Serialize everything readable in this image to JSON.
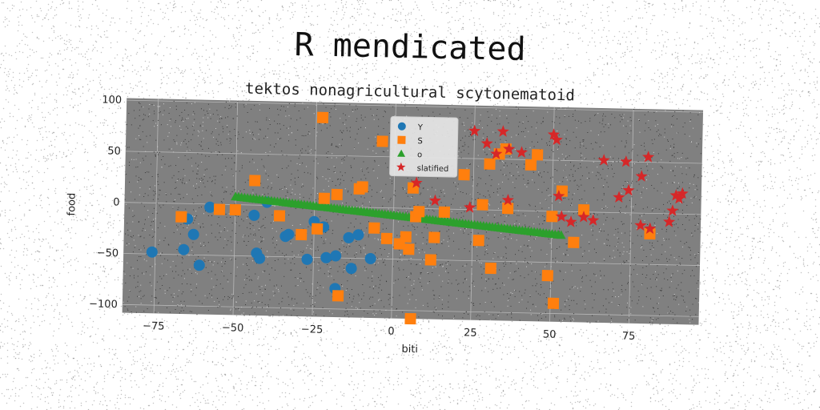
{
  "chart_data": {
    "type": "scatter",
    "title": "R mendicated",
    "subtitle": "tektos nonagricultural scytonematoid",
    "xlabel": "biti",
    "ylabel": "food",
    "xlim": [
      -85,
      97
    ],
    "ylim": [
      -108,
      102
    ],
    "xticks": [
      -75,
      -50,
      -25,
      0,
      25,
      50,
      75
    ],
    "yticks": [
      -100,
      -50,
      0,
      50,
      100
    ],
    "grid": true,
    "legend_position": "top-center",
    "background": "#808080",
    "series": [
      {
        "name": "Y",
        "marker": "circle",
        "color": "#1f77b4",
        "points": [
          [
            -76,
            -48
          ],
          [
            -66,
            -45
          ],
          [
            -63,
            -30
          ],
          [
            -61,
            -60
          ],
          [
            -65,
            -15
          ],
          [
            -58,
            -3
          ],
          [
            -44,
            -10
          ],
          [
            -43,
            -47
          ],
          [
            -42,
            -52
          ],
          [
            -40,
            3
          ],
          [
            -34,
            -30
          ],
          [
            -33,
            -28
          ],
          [
            -27,
            -52
          ],
          [
            -25,
            -15
          ],
          [
            -22,
            -20
          ],
          [
            -21,
            -50
          ],
          [
            -18,
            -48
          ],
          [
            -18,
            -80
          ],
          [
            -14,
            -30
          ],
          [
            -13,
            -60
          ],
          [
            -11,
            -27
          ],
          [
            -7,
            -50
          ]
        ]
      },
      {
        "name": "S",
        "marker": "square",
        "color": "#ff7f0e",
        "points": [
          [
            -67,
            -13
          ],
          [
            -55,
            -5
          ],
          [
            -50,
            -5
          ],
          [
            -44,
            24
          ],
          [
            -36,
            -10
          ],
          [
            -29,
            -28
          ],
          [
            -24,
            -22
          ],
          [
            -23,
            87
          ],
          [
            -22,
            8
          ],
          [
            -18,
            12
          ],
          [
            -17,
            -87
          ],
          [
            -11,
            18
          ],
          [
            -10,
            20
          ],
          [
            -6,
            -20
          ],
          [
            -4,
            65
          ],
          [
            -2,
            -30
          ],
          [
            2,
            -35
          ],
          [
            4,
            -28
          ],
          [
            5,
            -40
          ],
          [
            6,
            20
          ],
          [
            6,
            -108
          ],
          [
            7,
            -8
          ],
          [
            8,
            -3
          ],
          [
            12,
            -50
          ],
          [
            13,
            -28
          ],
          [
            16,
            -3
          ],
          [
            22,
            34
          ],
          [
            27,
            -30
          ],
          [
            28,
            5
          ],
          [
            30,
            45
          ],
          [
            31,
            -57
          ],
          [
            33,
            55
          ],
          [
            35,
            60
          ],
          [
            36,
            2
          ],
          [
            43,
            45
          ],
          [
            45,
            55
          ],
          [
            49,
            -63
          ],
          [
            50,
            -5
          ],
          [
            51,
            -90
          ],
          [
            53,
            20
          ],
          [
            57,
            -30
          ],
          [
            60,
            2
          ],
          [
            81,
            -20
          ]
        ]
      },
      {
        "name": "o",
        "marker": "triangle",
        "color": "#2ca02c",
        "line": {
          "x0": -50,
          "y0": 8,
          "x1": 53,
          "y1": -23,
          "count": 110
        }
      },
      {
        "name": "slatified",
        "marker": "star",
        "color": "#d62728",
        "points": [
          [
            7,
            25
          ],
          [
            13,
            8
          ],
          [
            24,
            2
          ],
          [
            25,
            77
          ],
          [
            29,
            65
          ],
          [
            32,
            55
          ],
          [
            34,
            77
          ],
          [
            36,
            60
          ],
          [
            36,
            10
          ],
          [
            40,
            57
          ],
          [
            50,
            75
          ],
          [
            51,
            70
          ],
          [
            52,
            15
          ],
          [
            53,
            -5
          ],
          [
            56,
            -10
          ],
          [
            60,
            -5
          ],
          [
            63,
            -8
          ],
          [
            66,
            51
          ],
          [
            71,
            15
          ],
          [
            73,
            50
          ],
          [
            74,
            22
          ],
          [
            78,
            -12
          ],
          [
            78,
            36
          ],
          [
            80,
            55
          ],
          [
            81,
            -15
          ],
          [
            87,
            -8
          ],
          [
            88,
            3
          ],
          [
            89,
            18
          ],
          [
            90,
            15
          ],
          [
            91,
            20
          ]
        ]
      }
    ]
  }
}
